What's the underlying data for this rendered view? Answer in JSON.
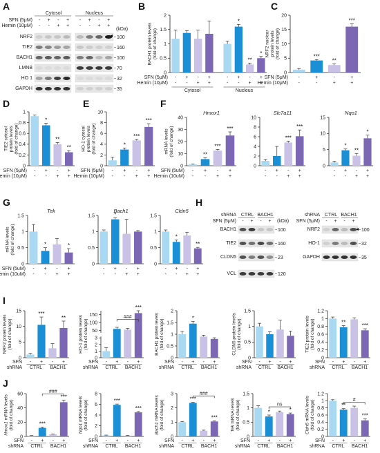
{
  "colors": {
    "light_blue": "#a8d8f2",
    "blue": "#1a8fd6",
    "lavender": "#c9c2e6",
    "purple": "#7b67b4",
    "grid": "#222222"
  },
  "panel_labels": [
    "A",
    "B",
    "C",
    "D",
    "E",
    "F",
    "G",
    "H",
    "I",
    "J"
  ],
  "blotA": {
    "groups": [
      "Cytosol",
      "Nucleus"
    ],
    "conditions": [
      {
        "name": "SFN (5μM)",
        "signs": [
          "-",
          "+",
          "-",
          "+",
          "-",
          "+",
          "-",
          "+"
        ]
      },
      {
        "name": "Hemin (10μM)",
        "signs": [
          "-",
          "-",
          "+",
          "+",
          "-",
          "-",
          "+",
          "+"
        ]
      }
    ],
    "unit": "(kDa)",
    "rows": [
      {
        "name": "NRF2",
        "kda": "100"
      },
      {
        "name": "TIE2",
        "kda": "160"
      },
      {
        "name": "BACH1",
        "kda": "100"
      },
      {
        "name": "LMNB",
        "kda": "70"
      },
      {
        "name": "HO 1",
        "kda": "32"
      },
      {
        "name": "GAPDH",
        "kda": "35"
      }
    ]
  },
  "blotH1": {
    "shrna_label": "shRNA",
    "groups": [
      "CTRL",
      "BACH1"
    ],
    "sfn_label": "SFN (5μM)",
    "signs": [
      "-",
      "+",
      "-",
      "+"
    ],
    "unit": "(kDa)",
    "rows": [
      {
        "name": "BACH1",
        "kda": "100"
      },
      {
        "name": "TIE2",
        "kda": "160"
      },
      {
        "name": "CLDN5",
        "kda": "23"
      },
      {
        "name": "VCL",
        "kda": "120"
      }
    ]
  },
  "blotH2": {
    "shrna_label": "shRNA",
    "groups": [
      "CTRL",
      "BACH1"
    ],
    "sfn_label": "SFN (5μM)",
    "signs": [
      "-",
      "+",
      "-",
      "+"
    ],
    "rows": [
      {
        "name": "NRF2",
        "kda": "100"
      },
      {
        "name": "HO-1",
        "kda": "32"
      },
      {
        "name": "GAPDH",
        "kda": "35"
      }
    ]
  },
  "chart_data": [
    {
      "id": "B",
      "type": "bar",
      "ylabel": [
        "BACH1 protein levels",
        "(fold of change)"
      ],
      "ylim": [
        0,
        2.0
      ],
      "yticks": [
        0,
        0.5,
        1.0,
        1.5,
        2.0
      ],
      "values": [
        1.18,
        1.38,
        1.18,
        1.35,
        1.0,
        1.6,
        0.28,
        0.5
      ],
      "errors": [
        0.3,
        0.08,
        0.3,
        0.45,
        0.1,
        0.08,
        0.05,
        0.06
      ],
      "stars": [
        "",
        "",
        "",
        "",
        "",
        "*",
        "**",
        "*"
      ],
      "colors": [
        "light_blue",
        "blue",
        "lavender",
        "purple",
        "light_blue",
        "blue",
        "lavender",
        "purple"
      ],
      "conditions": [
        {
          "name": "SFN (5μM)",
          "signs": [
            "-",
            "+",
            "-",
            "+",
            "-",
            "+",
            "-",
            "+"
          ]
        },
        {
          "name": "Hemin (10μM)",
          "signs": [
            "-",
            "-",
            "+",
            "+",
            "-",
            "-",
            "+",
            "+"
          ]
        }
      ],
      "groups": [
        "Cytosol",
        "Nucleus"
      ]
    },
    {
      "id": "C",
      "type": "bar",
      "ylabel": [
        "NRF2 nuclear",
        "protein levels",
        "(fold of change)"
      ],
      "ylim": [
        0,
        20
      ],
      "yticks": [
        0,
        5,
        10,
        15,
        20
      ],
      "values": [
        1.0,
        4.2,
        2.6,
        16.0
      ],
      "errors": [
        0.4,
        0.3,
        0.4,
        1.0
      ],
      "stars": [
        "",
        "***",
        "**",
        "***"
      ],
      "colors": [
        "light_blue",
        "blue",
        "lavender",
        "purple"
      ],
      "conditions": [
        {
          "name": "SFN (5μM)",
          "signs": [
            "-",
            "+",
            "-",
            "+"
          ]
        },
        {
          "name": "Hemin (10μM)",
          "signs": [
            "-",
            "-",
            "+",
            "+"
          ]
        }
      ]
    },
    {
      "id": "D",
      "type": "bar",
      "ylabel": [
        "TIE2 cytosol",
        "protein levels",
        "(fold of change)"
      ],
      "ylim": [
        0,
        1.0
      ],
      "yticks": [
        0,
        0.2,
        0.4,
        0.6,
        0.8,
        1.0
      ],
      "values": [
        0.92,
        0.75,
        0.4,
        0.25
      ],
      "errors": [
        0.02,
        0.04,
        0.03,
        0.03
      ],
      "stars": [
        "",
        "*",
        "**",
        "**"
      ],
      "colors": [
        "light_blue",
        "blue",
        "lavender",
        "purple"
      ],
      "conditions": [
        {
          "name": "SFN (5μM)",
          "signs": [
            "-",
            "+",
            "-",
            "+"
          ]
        },
        {
          "name": "Hemin (10μM)",
          "signs": [
            "-",
            "-",
            "+",
            "+"
          ]
        }
      ]
    },
    {
      "id": "E",
      "type": "bar",
      "ylabel": [
        "HO-1 cytosol",
        "protein levels",
        "(fold of change)"
      ],
      "ylim": [
        0,
        10
      ],
      "yticks": [
        0,
        2,
        4,
        6,
        8,
        10
      ],
      "values": [
        1.0,
        3.0,
        4.7,
        7.2
      ],
      "errors": [
        0.6,
        0.3,
        0.2,
        0.6
      ],
      "stars": [
        "",
        "*",
        "***",
        "***"
      ],
      "colors": [
        "light_blue",
        "blue",
        "lavender",
        "purple"
      ],
      "conditions": [
        {
          "name": "SFN (5μM)",
          "signs": [
            "-",
            "+",
            "-",
            "+"
          ]
        },
        {
          "name": "Hemin (10μM)",
          "signs": [
            "-",
            "-",
            "+",
            "+"
          ]
        }
      ]
    },
    {
      "id": "F1",
      "type": "bar",
      "title": "Hmox1",
      "ylabel": [
        "mRNA levels",
        "(fold of change)"
      ],
      "ylim": [
        0,
        40
      ],
      "yticks": [
        0,
        10,
        20,
        30,
        40
      ],
      "values": [
        1.0,
        5.5,
        12.5,
        25.0
      ],
      "errors": [
        0.4,
        1.0,
        1.0,
        3.0
      ],
      "stars": [
        "",
        "**",
        "***",
        "***"
      ],
      "colors": [
        "light_blue",
        "blue",
        "lavender",
        "purple"
      ],
      "conditions": [
        {
          "name": "SFN (5uM)",
          "signs": [
            "-",
            "+",
            "-",
            "+"
          ]
        },
        {
          "name": "Hemin (10uM)",
          "signs": [
            "-",
            "-",
            "+",
            "+"
          ]
        }
      ]
    },
    {
      "id": "F2",
      "type": "bar",
      "title": "Slc7a11",
      "ylim": [
        0,
        10
      ],
      "yticks": [
        0,
        2,
        4,
        6,
        8,
        10
      ],
      "values": [
        1.0,
        2.0,
        4.8,
        6.1
      ],
      "errors": [
        0.3,
        2.0,
        0.3,
        1.3
      ],
      "stars": [
        "",
        "",
        "***",
        "***"
      ],
      "colors": [
        "light_blue",
        "blue",
        "lavender",
        "purple"
      ]
    },
    {
      "id": "F3",
      "type": "bar",
      "title": "Nqo1",
      "ylim": [
        0,
        15
      ],
      "yticks": [
        0,
        5,
        10,
        15
      ],
      "values": [
        1.0,
        4.8,
        3.1,
        8.5
      ],
      "errors": [
        0.4,
        0.4,
        0.7,
        1.0
      ],
      "stars": [
        "",
        "*",
        "**",
        "*"
      ],
      "colors": [
        "light_blue",
        "blue",
        "lavender",
        "purple"
      ]
    },
    {
      "id": "G1",
      "type": "bar",
      "title": "Tek",
      "ylabel": [
        "mRNA levels",
        "(fold of change)"
      ],
      "ylim": [
        0,
        1.5
      ],
      "yticks": [
        0,
        0.5,
        1.0,
        1.5
      ],
      "values": [
        1.0,
        0.4,
        0.6,
        0.35
      ],
      "errors": [
        0.22,
        0.1,
        0.18,
        0.12
      ],
      "stars": [
        "",
        "*",
        "",
        "*"
      ],
      "colors": [
        "light_blue",
        "blue",
        "lavender",
        "purple"
      ],
      "conditions": [
        {
          "name": "SFN (5uM)",
          "signs": [
            "-",
            "+",
            "-",
            "+"
          ]
        },
        {
          "name": "Hemin (10uM)",
          "signs": [
            "-",
            "-",
            "+",
            "+"
          ]
        }
      ]
    },
    {
      "id": "G2",
      "type": "bar",
      "title": "Bach1",
      "ylim": [
        0,
        1.5
      ],
      "yticks": [
        0,
        0.5,
        1.0,
        1.5
      ],
      "values": [
        1.0,
        1.38,
        0.93,
        1.0
      ],
      "errors": [
        0.05,
        0.05,
        0.45,
        0.03
      ],
      "stars": [
        "",
        "*",
        "",
        ""
      ],
      "colors": [
        "light_blue",
        "blue",
        "lavender",
        "purple"
      ]
    },
    {
      "id": "G3",
      "type": "bar",
      "title": "Cldn5",
      "ylim": [
        0,
        1.5
      ],
      "yticks": [
        0,
        0.5,
        1.0,
        1.5
      ],
      "values": [
        1.0,
        0.68,
        0.88,
        0.48
      ],
      "errors": [
        0.05,
        0.06,
        0.1,
        0.03
      ],
      "stars": [
        "",
        "*",
        "",
        "**"
      ],
      "colors": [
        "light_blue",
        "blue",
        "lavender",
        "purple"
      ]
    },
    {
      "id": "I1",
      "type": "bar",
      "ylabel": [
        "NRF2 protein levels",
        "(fold of change)"
      ],
      "ylim": [
        0,
        15
      ],
      "yticks": [
        0,
        5,
        10,
        15
      ],
      "values": [
        1.0,
        10.5,
        3.0,
        9.5
      ],
      "errors": [
        0.4,
        2.5,
        1.5,
        2.2
      ],
      "stars": [
        "",
        "***",
        "",
        "**"
      ],
      "colors": [
        "light_blue",
        "blue",
        "lavender",
        "purple"
      ],
      "xrows": [
        {
          "name": "SFN",
          "signs": [
            "-",
            "+",
            "-",
            "+"
          ]
        }
      ],
      "shrna": {
        "name": "shRNA",
        "groups": [
          "CTRL",
          "BACH1"
        ]
      }
    },
    {
      "id": "I2",
      "type": "bar",
      "broken": true,
      "ylabel": [
        "HO-1 protein levels",
        "(fold of change)"
      ],
      "lower_ticks": [
        0,
        1,
        2,
        3
      ],
      "upper_ticks": [
        50,
        100,
        150
      ],
      "values": [
        1.0,
        60,
        55,
        160
      ],
      "errors": [
        0.5,
        10,
        8,
        15
      ],
      "stars": [
        "",
        "",
        "",
        "***"
      ],
      "bracket": "###",
      "colors": [
        "light_blue",
        "blue",
        "lavender",
        "purple"
      ],
      "xrows": [
        {
          "name": "SFN",
          "signs": [
            "-",
            "+",
            "-",
            "+"
          ]
        }
      ],
      "shrna": {
        "name": "shRNA",
        "groups": [
          "CTRL",
          "BACH1"
        ]
      }
    },
    {
      "id": "I3",
      "type": "bar",
      "ylabel": [
        "BACH1 protein levels",
        "(fold of change)"
      ],
      "ylim": [
        0,
        2.0
      ],
      "yticks": [
        0,
        0.5,
        1.0,
        1.5,
        2.0
      ],
      "values": [
        1.0,
        1.45,
        0.9,
        0.8
      ],
      "errors": [
        0.12,
        0.1,
        0.06,
        0.05
      ],
      "stars": [
        "",
        "*",
        "",
        ""
      ],
      "colors": [
        "light_blue",
        "blue",
        "lavender",
        "purple"
      ],
      "xrows": [
        {
          "name": "SFN",
          "signs": [
            "-",
            "+",
            "-",
            "+"
          ]
        }
      ],
      "shrna": {
        "name": "shRNA",
        "groups": [
          "CTRL",
          "BACH1"
        ]
      }
    },
    {
      "id": "I4",
      "type": "bar",
      "ylabel": [
        "CLDN5 protein levels",
        "(fold of change)"
      ],
      "ylim": [
        0,
        1.5
      ],
      "yticks": [
        0,
        0.5,
        1.0,
        1.5
      ],
      "values": [
        1.0,
        0.75,
        0.9,
        0.7
      ],
      "errors": [
        0.1,
        0.08,
        0.3,
        0.15
      ],
      "stars": [
        "",
        "",
        "",
        ""
      ],
      "colors": [
        "light_blue",
        "blue",
        "lavender",
        "purple"
      ],
      "xrows": [
        {
          "name": "SFN",
          "signs": [
            "-",
            "+",
            "-",
            "+"
          ]
        }
      ],
      "shrna": {
        "name": "shRNA",
        "groups": [
          "CTRL",
          "BACH1"
        ]
      }
    },
    {
      "id": "I5",
      "type": "bar",
      "ylabel": [
        "TIE2 protein levels",
        "(fold of change)"
      ],
      "ylim": [
        0,
        1.2
      ],
      "yticks": [
        0,
        0.2,
        0.4,
        0.6,
        0.8,
        1.0,
        1.2
      ],
      "values": [
        1.0,
        0.78,
        0.98,
        0.7
      ],
      "errors": [
        0.04,
        0.04,
        0.04,
        0.04
      ],
      "stars": [
        "",
        "**",
        "",
        "***"
      ],
      "colors": [
        "light_blue",
        "blue",
        "lavender",
        "purple"
      ],
      "xrows": [
        {
          "name": "SFN",
          "signs": [
            "-",
            "+",
            "-",
            "+"
          ]
        }
      ],
      "shrna": {
        "name": "shRNA",
        "groups": [
          "CTRL",
          "BACH1"
        ]
      }
    },
    {
      "id": "J1",
      "type": "bar",
      "ylabel": [
        "Hmox1 mRNA levels",
        "(fold of change)"
      ],
      "ylim": [
        0,
        60
      ],
      "yticks": [
        0,
        20,
        40,
        60
      ],
      "values": [
        1.0,
        12.0,
        3.0,
        48.0
      ],
      "errors": [
        0.3,
        1.2,
        0.3,
        3.0
      ],
      "stars": [
        "",
        "***",
        "",
        "***"
      ],
      "bracket": "###",
      "colors": [
        "light_blue",
        "blue",
        "lavender",
        "purple"
      ],
      "xrows": [
        {
          "name": "SFN",
          "signs": [
            "-",
            "+",
            "-",
            "+"
          ]
        }
      ],
      "shrna": {
        "name": "shRNA",
        "groups": [
          "CTRL",
          "BACH1"
        ]
      }
    },
    {
      "id": "J2",
      "type": "bar",
      "ylabel": [
        "Nqo1 mRNA levels",
        "(fold of change)"
      ],
      "ylim": [
        0,
        8
      ],
      "yticks": [
        0,
        2,
        4,
        6,
        8
      ],
      "values": [
        0.2,
        5.9,
        0.15,
        4.5
      ],
      "errors": [
        0.05,
        0.15,
        0.05,
        0.15
      ],
      "stars": [
        "",
        "***",
        "",
        "***"
      ],
      "colors": [
        "light_blue",
        "blue",
        "lavender",
        "purple"
      ],
      "xrows": [
        {
          "name": "SFN",
          "signs": [
            "-",
            "+",
            "-",
            "+"
          ]
        }
      ],
      "shrna": {
        "name": "shRNA",
        "groups": [
          "CTRL",
          "BACH1"
        ]
      }
    },
    {
      "id": "J3",
      "type": "bar",
      "ylabel": [
        "Bach1 mRNA levels",
        "(fold of change)"
      ],
      "ylim": [
        0,
        3
      ],
      "yticks": [
        0,
        1,
        2,
        3
      ],
      "values": [
        1.0,
        2.35,
        0.4,
        1.05
      ],
      "errors": [
        0.05,
        0.05,
        0.04,
        0.04
      ],
      "stars": [
        "",
        "***",
        "",
        "***"
      ],
      "bracket": "###",
      "colors": [
        "light_blue",
        "blue",
        "lavender",
        "purple"
      ],
      "xrows": [
        {
          "name": "SFN",
          "signs": [
            "-",
            "+",
            "-",
            "+"
          ]
        }
      ],
      "shrna": {
        "name": "shRNA",
        "groups": [
          "CTRL",
          "BACH1"
        ]
      }
    },
    {
      "id": "J4",
      "type": "bar",
      "ylabel": [
        "Tek mRNA levels",
        "(fold of change)"
      ],
      "ylim": [
        0,
        1.5
      ],
      "yticks": [
        0,
        0.5,
        1.0,
        1.5
      ],
      "values": [
        1.0,
        0.7,
        0.85,
        0.78
      ],
      "errors": [
        0.08,
        0.05,
        0.04,
        0.04
      ],
      "stars": [
        "",
        "*",
        "",
        "*"
      ],
      "bracket": "ns",
      "colors": [
        "light_blue",
        "blue",
        "lavender",
        "purple"
      ],
      "xrows": [
        {
          "name": "SFN",
          "signs": [
            "-",
            "+",
            "-",
            "+"
          ]
        }
      ],
      "shrna": {
        "name": "shRNA",
        "groups": [
          "CTRL",
          "BACH1"
        ]
      }
    },
    {
      "id": "J5",
      "type": "bar",
      "ylabel": [
        "Cldn5 mRNA levels",
        "(fold of change)"
      ],
      "ylim": [
        0,
        1.2
      ],
      "yticks": [
        0,
        0.2,
        0.4,
        0.6,
        0.8,
        1.0,
        1.2
      ],
      "values": [
        1.0,
        0.75,
        0.8,
        0.45
      ],
      "errors": [
        0.03,
        0.03,
        0.05,
        0.04
      ],
      "stars": [
        "",
        "**",
        "",
        "***"
      ],
      "bracket": "#",
      "colors": [
        "light_blue",
        "blue",
        "lavender",
        "purple"
      ],
      "xrows": [
        {
          "name": "SFN",
          "signs": [
            "-",
            "+",
            "-",
            "+"
          ]
        }
      ],
      "shrna": {
        "name": "shRNA",
        "groups": [
          "CTRL",
          "BACH1"
        ]
      }
    }
  ]
}
